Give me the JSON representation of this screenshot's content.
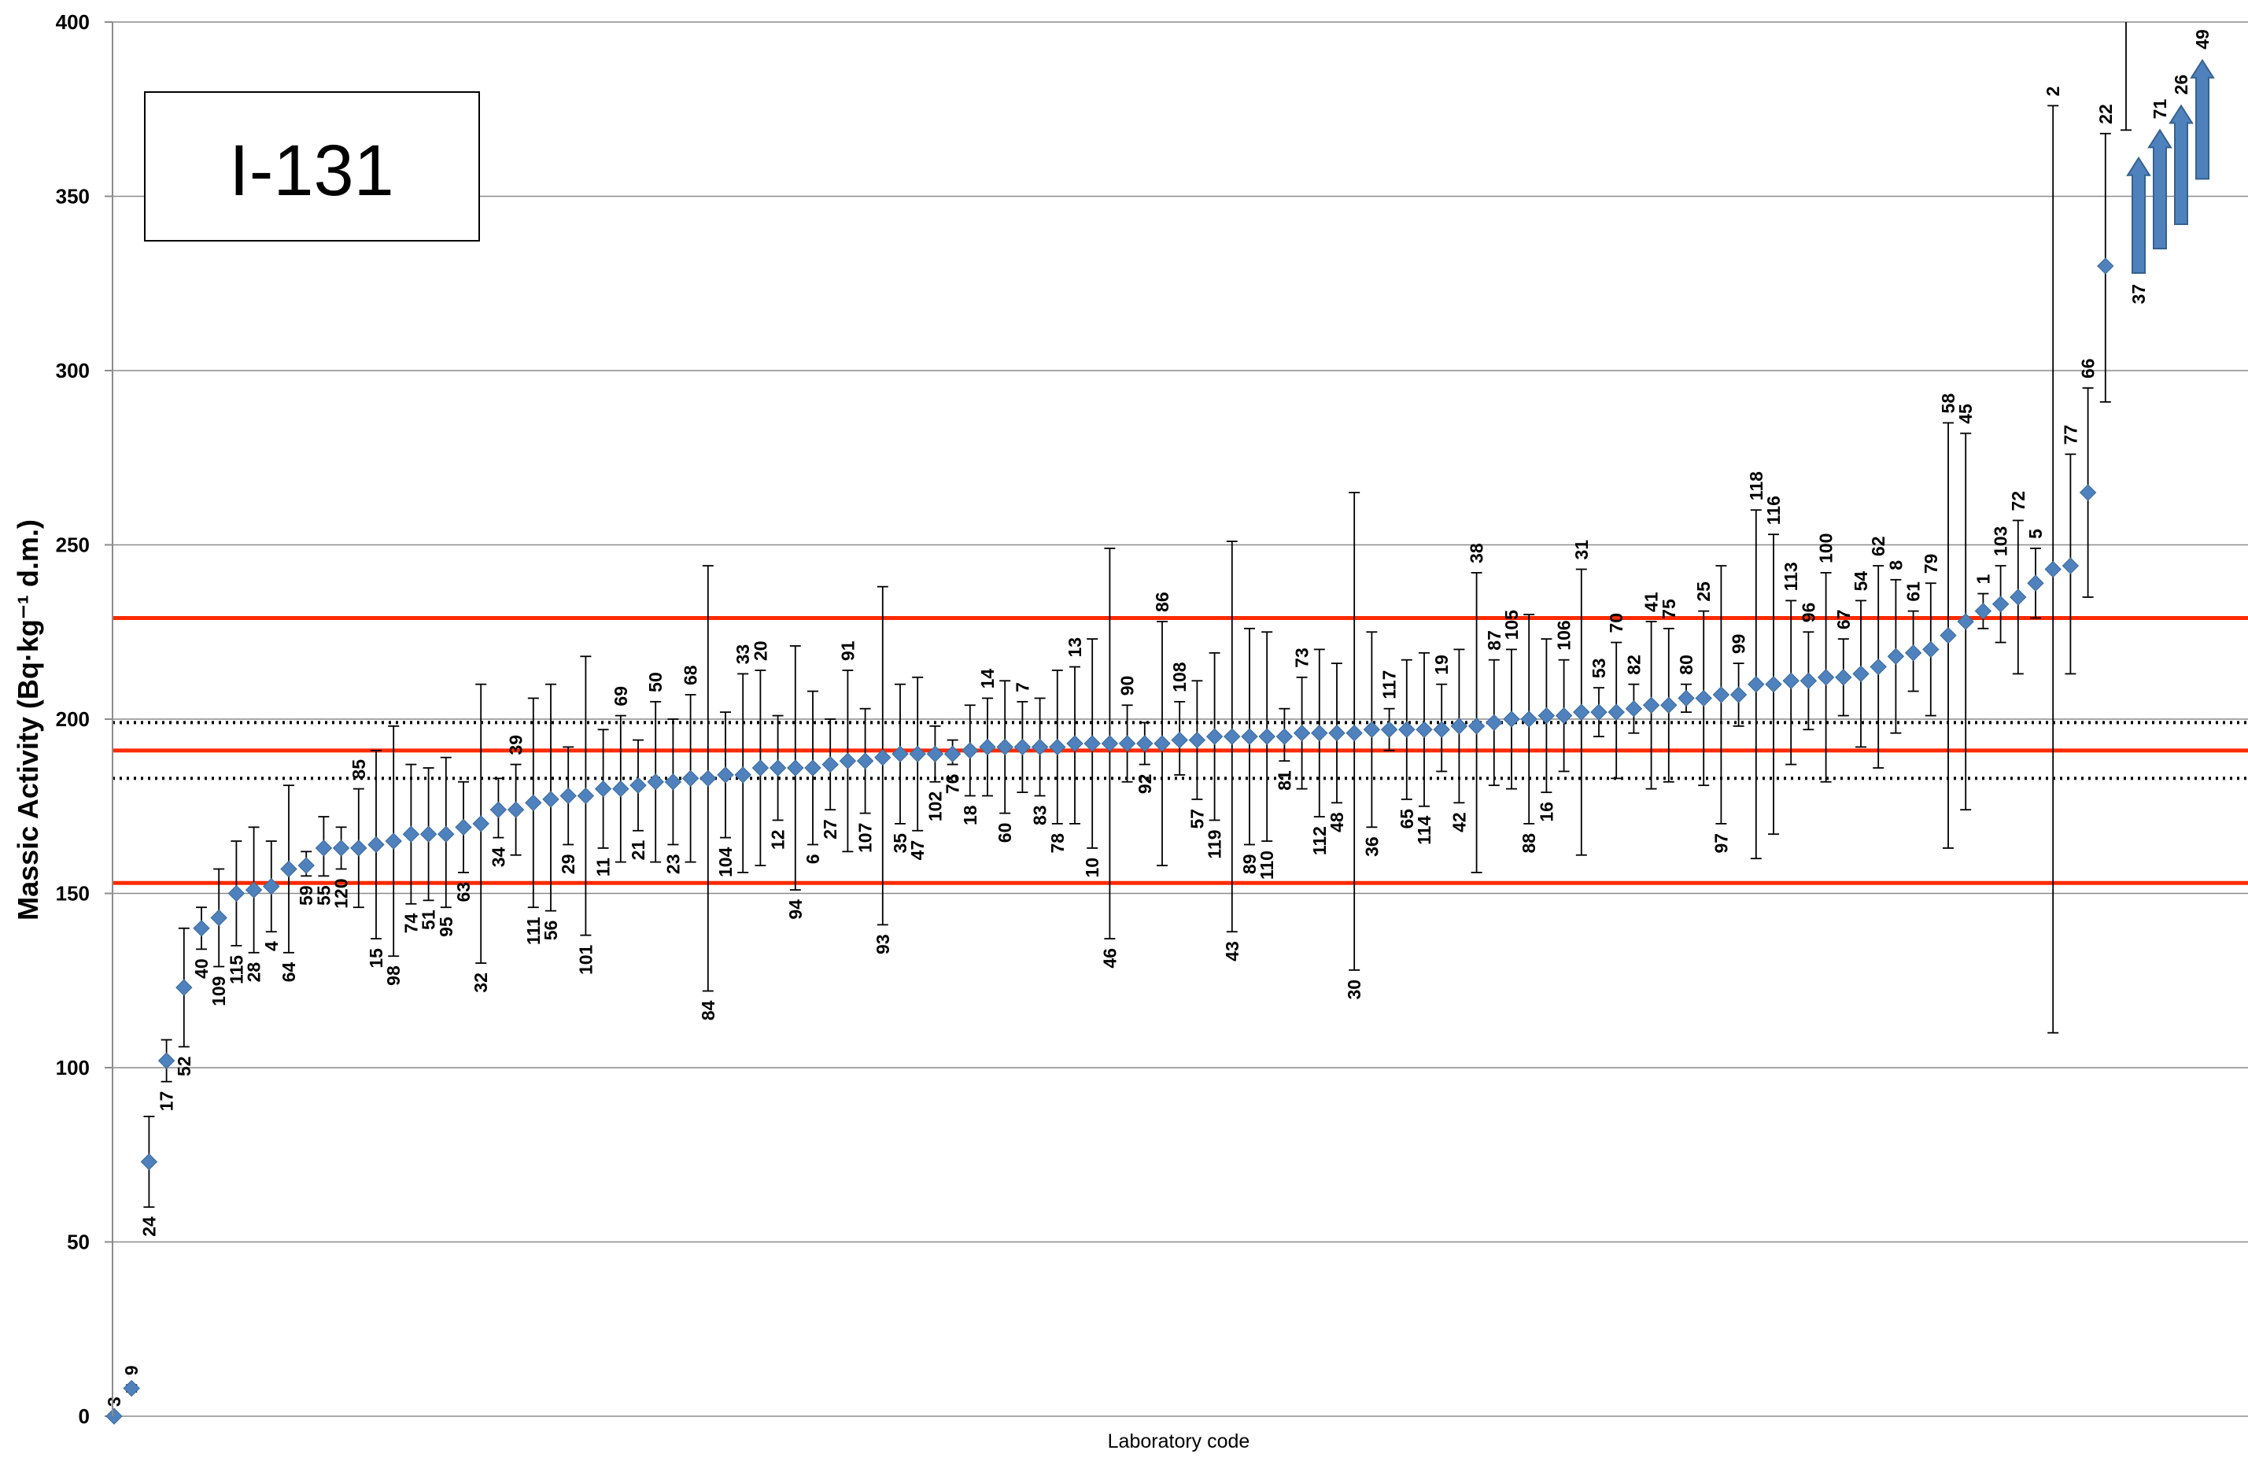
{
  "chart_data": {
    "type": "scatter",
    "title": "I-131",
    "xlabel": "Laboratory code",
    "ylabel": "Massic  Activity (Bq·kg⁻¹ d.m.)",
    "ylim": [
      0,
      400
    ],
    "yticks": [
      0,
      50,
      100,
      150,
      200,
      250,
      300,
      350,
      400
    ],
    "grid": true,
    "colors": {
      "marker": "#4f81bd",
      "marker_edge": "#3a6a9c",
      "reference": "#ff2a00",
      "uncertainty": "#000000",
      "error_bar": "#000000",
      "arrow": "#4f81bd"
    },
    "reference_lines": [
      {
        "kind": "reference value",
        "value": 191,
        "style": "solid",
        "color": "#ff2a00"
      },
      {
        "kind": "acceptance limit",
        "value": 229,
        "style": "solid",
        "color": "#ff2a00"
      },
      {
        "kind": "acceptance limit",
        "value": 153,
        "style": "solid",
        "color": "#ff2a00"
      },
      {
        "kind": "uncertainty",
        "value": 199,
        "style": "dotted",
        "color": "#000000"
      },
      {
        "kind": "uncertainty",
        "value": 183,
        "style": "dotted",
        "color": "#000000"
      }
    ],
    "points": [
      {
        "code": "3",
        "y": 0,
        "lo": 0,
        "hi": 0,
        "pos": "above"
      },
      {
        "code": "9",
        "y": 8,
        "lo": 7,
        "hi": 9,
        "pos": "above"
      },
      {
        "code": "24",
        "y": 73,
        "lo": 60,
        "hi": 86,
        "pos": "below"
      },
      {
        "code": "17",
        "y": 102,
        "lo": 96,
        "hi": 108,
        "pos": "below"
      },
      {
        "code": "52",
        "y": 123,
        "lo": 106,
        "hi": 140,
        "pos": "below"
      },
      {
        "code": "40",
        "y": 140,
        "lo": 134,
        "hi": 146,
        "pos": "below"
      },
      {
        "code": "109",
        "y": 143,
        "lo": 129,
        "hi": 157,
        "pos": "below"
      },
      {
        "code": "115",
        "y": 150,
        "lo": 135,
        "hi": 165,
        "pos": "below"
      },
      {
        "code": "28",
        "y": 151,
        "lo": 133,
        "hi": 169,
        "pos": "below"
      },
      {
        "code": "4",
        "y": 152,
        "lo": 139,
        "hi": 165,
        "pos": "below"
      },
      {
        "code": "64",
        "y": 157,
        "lo": 133,
        "hi": 181,
        "pos": "below"
      },
      {
        "code": "59",
        "y": 158,
        "lo": 155,
        "hi": 162,
        "pos": "below"
      },
      {
        "code": "55",
        "y": 163,
        "lo": 155,
        "hi": 172,
        "pos": "below"
      },
      {
        "code": "120",
        "y": 163,
        "lo": 157,
        "hi": 169,
        "pos": "below"
      },
      {
        "code": "85",
        "y": 163,
        "lo": 146,
        "hi": 180,
        "pos": "above"
      },
      {
        "code": "15",
        "y": 164,
        "lo": 137,
        "hi": 191,
        "pos": "below"
      },
      {
        "code": "98",
        "y": 165,
        "lo": 132,
        "hi": 198,
        "pos": "below"
      },
      {
        "code": "74",
        "y": 167,
        "lo": 147,
        "hi": 187,
        "pos": "below"
      },
      {
        "code": "51",
        "y": 167,
        "lo": 148,
        "hi": 186,
        "pos": "below"
      },
      {
        "code": "95",
        "y": 167,
        "lo": 146,
        "hi": 189,
        "pos": "below"
      },
      {
        "code": "63",
        "y": 169,
        "lo": 156,
        "hi": 182,
        "pos": "below"
      },
      {
        "code": "32",
        "y": 170,
        "lo": 130,
        "hi": 210,
        "pos": "below"
      },
      {
        "code": "34",
        "y": 174,
        "lo": 166,
        "hi": 183,
        "pos": "below"
      },
      {
        "code": "39",
        "y": 174,
        "lo": 161,
        "hi": 187,
        "pos": "above"
      },
      {
        "code": "111",
        "y": 176,
        "lo": 146,
        "hi": 206,
        "pos": "below"
      },
      {
        "code": "56",
        "y": 177,
        "lo": 145,
        "hi": 210,
        "pos": "below"
      },
      {
        "code": "29",
        "y": 178,
        "lo": 164,
        "hi": 192,
        "pos": "below"
      },
      {
        "code": "101",
        "y": 178,
        "lo": 138,
        "hi": 218,
        "pos": "below"
      },
      {
        "code": "11",
        "y": 180,
        "lo": 163,
        "hi": 197,
        "pos": "below"
      },
      {
        "code": "69",
        "y": 180,
        "lo": 159,
        "hi": 201,
        "pos": "above"
      },
      {
        "code": "21",
        "y": 181,
        "lo": 168,
        "hi": 194,
        "pos": "below"
      },
      {
        "code": "50",
        "y": 182,
        "lo": 159,
        "hi": 205,
        "pos": "above"
      },
      {
        "code": "23",
        "y": 182,
        "lo": 164,
        "hi": 200,
        "pos": "below"
      },
      {
        "code": "68",
        "y": 183,
        "lo": 159,
        "hi": 207,
        "pos": "above"
      },
      {
        "code": "84",
        "y": 183,
        "lo": 122,
        "hi": 244,
        "pos": "below"
      },
      {
        "code": "104",
        "y": 184,
        "lo": 166,
        "hi": 202,
        "pos": "below"
      },
      {
        "code": "33",
        "y": 184,
        "lo": 156,
        "hi": 213,
        "pos": "above"
      },
      {
        "code": "20",
        "y": 186,
        "lo": 158,
        "hi": 214,
        "pos": "above"
      },
      {
        "code": "12",
        "y": 186,
        "lo": 171,
        "hi": 201,
        "pos": "below"
      },
      {
        "code": "94",
        "y": 186,
        "lo": 151,
        "hi": 221,
        "pos": "below"
      },
      {
        "code": "6",
        "y": 186,
        "lo": 164,
        "hi": 208,
        "pos": "below"
      },
      {
        "code": "27",
        "y": 187,
        "lo": 174,
        "hi": 200,
        "pos": "below"
      },
      {
        "code": "91",
        "y": 188,
        "lo": 162,
        "hi": 214,
        "pos": "above"
      },
      {
        "code": "107",
        "y": 188,
        "lo": 173,
        "hi": 203,
        "pos": "below"
      },
      {
        "code": "93",
        "y": 189,
        "lo": 141,
        "hi": 238,
        "pos": "below"
      },
      {
        "code": "35",
        "y": 190,
        "lo": 170,
        "hi": 210,
        "pos": "below"
      },
      {
        "code": "47",
        "y": 190,
        "lo": 168,
        "hi": 212,
        "pos": "below"
      },
      {
        "code": "102",
        "y": 190,
        "lo": 182,
        "hi": 198,
        "pos": "below"
      },
      {
        "code": "76",
        "y": 190,
        "lo": 187,
        "hi": 194,
        "pos": "below"
      },
      {
        "code": "18",
        "y": 191,
        "lo": 178,
        "hi": 204,
        "pos": "below"
      },
      {
        "code": "14",
        "y": 192,
        "lo": 178,
        "hi": 206,
        "pos": "above"
      },
      {
        "code": "60",
        "y": 192,
        "lo": 173,
        "hi": 211,
        "pos": "below"
      },
      {
        "code": "7",
        "y": 192,
        "lo": 179,
        "hi": 205,
        "pos": "above"
      },
      {
        "code": "83",
        "y": 192,
        "lo": 178,
        "hi": 206,
        "pos": "below"
      },
      {
        "code": "78",
        "y": 192,
        "lo": 170,
        "hi": 214,
        "pos": "below"
      },
      {
        "code": "13",
        "y": 193,
        "lo": 170,
        "hi": 215,
        "pos": "above"
      },
      {
        "code": "10",
        "y": 193,
        "lo": 163,
        "hi": 223,
        "pos": "below"
      },
      {
        "code": "46",
        "y": 193,
        "lo": 137,
        "hi": 249,
        "pos": "below"
      },
      {
        "code": "90",
        "y": 193,
        "lo": 182,
        "hi": 204,
        "pos": "above"
      },
      {
        "code": "92",
        "y": 193,
        "lo": 187,
        "hi": 199,
        "pos": "below"
      },
      {
        "code": "86",
        "y": 193,
        "lo": 158,
        "hi": 228,
        "pos": "above"
      },
      {
        "code": "108",
        "y": 194,
        "lo": 184,
        "hi": 205,
        "pos": "above"
      },
      {
        "code": "57",
        "y": 194,
        "lo": 177,
        "hi": 211,
        "pos": "below"
      },
      {
        "code": "119",
        "y": 195,
        "lo": 171,
        "hi": 219,
        "pos": "below"
      },
      {
        "code": "43",
        "y": 195,
        "lo": 139,
        "hi": 251,
        "pos": "below"
      },
      {
        "code": "89",
        "y": 195,
        "lo": 164,
        "hi": 226,
        "pos": "below"
      },
      {
        "code": "110",
        "y": 195,
        "lo": 165,
        "hi": 225,
        "pos": "below"
      },
      {
        "code": "81",
        "y": 195,
        "lo": 188,
        "hi": 203,
        "pos": "below"
      },
      {
        "code": "73",
        "y": 196,
        "lo": 180,
        "hi": 212,
        "pos": "above"
      },
      {
        "code": "112",
        "y": 196,
        "lo": 172,
        "hi": 220,
        "pos": "below"
      },
      {
        "code": "48",
        "y": 196,
        "lo": 176,
        "hi": 216,
        "pos": "below"
      },
      {
        "code": "30",
        "y": 196,
        "lo": 128,
        "hi": 265,
        "pos": "below"
      },
      {
        "code": "36",
        "y": 197,
        "lo": 169,
        "hi": 225,
        "pos": "below"
      },
      {
        "code": "117",
        "y": 197,
        "lo": 191,
        "hi": 203,
        "pos": "above"
      },
      {
        "code": "65",
        "y": 197,
        "lo": 177,
        "hi": 217,
        "pos": "below"
      },
      {
        "code": "114",
        "y": 197,
        "lo": 175,
        "hi": 219,
        "pos": "below"
      },
      {
        "code": "19",
        "y": 197,
        "lo": 185,
        "hi": 210,
        "pos": "above"
      },
      {
        "code": "42",
        "y": 198,
        "lo": 176,
        "hi": 220,
        "pos": "below"
      },
      {
        "code": "38",
        "y": 198,
        "lo": 156,
        "hi": 242,
        "pos": "above"
      },
      {
        "code": "87",
        "y": 199,
        "lo": 181,
        "hi": 217,
        "pos": "above"
      },
      {
        "code": "105",
        "y": 200,
        "lo": 180,
        "hi": 220,
        "pos": "above"
      },
      {
        "code": "88",
        "y": 200,
        "lo": 170,
        "hi": 230,
        "pos": "below"
      },
      {
        "code": "16",
        "y": 201,
        "lo": 179,
        "hi": 223,
        "pos": "below"
      },
      {
        "code": "106",
        "y": 201,
        "lo": 185,
        "hi": 217,
        "pos": "above"
      },
      {
        "code": "31",
        "y": 202,
        "lo": 161,
        "hi": 243,
        "pos": "above"
      },
      {
        "code": "53",
        "y": 202,
        "lo": 195,
        "hi": 209,
        "pos": "above"
      },
      {
        "code": "70",
        "y": 202,
        "lo": 183,
        "hi": 222,
        "pos": "above"
      },
      {
        "code": "82",
        "y": 203,
        "lo": 196,
        "hi": 210,
        "pos": "above"
      },
      {
        "code": "41",
        "y": 204,
        "lo": 180,
        "hi": 228,
        "pos": "above"
      },
      {
        "code": "75",
        "y": 204,
        "lo": 182,
        "hi": 226,
        "pos": "above"
      },
      {
        "code": "80",
        "y": 206,
        "lo": 202,
        "hi": 210,
        "pos": "above"
      },
      {
        "code": "25",
        "y": 206,
        "lo": 181,
        "hi": 231,
        "pos": "above"
      },
      {
        "code": "97",
        "y": 207,
        "lo": 170,
        "hi": 244,
        "pos": "below"
      },
      {
        "code": "99",
        "y": 207,
        "lo": 198,
        "hi": 216,
        "pos": "above"
      },
      {
        "code": "118",
        "y": 210,
        "lo": 160,
        "hi": 260,
        "pos": "above"
      },
      {
        "code": "116",
        "y": 210,
        "lo": 167,
        "hi": 253,
        "pos": "above"
      },
      {
        "code": "113",
        "y": 211,
        "lo": 187,
        "hi": 234,
        "pos": "above"
      },
      {
        "code": "96",
        "y": 211,
        "lo": 197,
        "hi": 225,
        "pos": "above"
      },
      {
        "code": "100",
        "y": 212,
        "lo": 182,
        "hi": 242,
        "pos": "above"
      },
      {
        "code": "67",
        "y": 212,
        "lo": 201,
        "hi": 223,
        "pos": "above"
      },
      {
        "code": "54",
        "y": 213,
        "lo": 192,
        "hi": 234,
        "pos": "above"
      },
      {
        "code": "62",
        "y": 215,
        "lo": 186,
        "hi": 244,
        "pos": "above"
      },
      {
        "code": "8",
        "y": 218,
        "lo": 196,
        "hi": 240,
        "pos": "above"
      },
      {
        "code": "61",
        "y": 219,
        "lo": 208,
        "hi": 231,
        "pos": "above"
      },
      {
        "code": "79",
        "y": 220,
        "lo": 201,
        "hi": 239,
        "pos": "above"
      },
      {
        "code": "58",
        "y": 224,
        "lo": 163,
        "hi": 285,
        "pos": "above"
      },
      {
        "code": "45",
        "y": 228,
        "lo": 174,
        "hi": 282,
        "pos": "above"
      },
      {
        "code": "1",
        "y": 231,
        "lo": 226,
        "hi": 236,
        "pos": "above"
      },
      {
        "code": "103",
        "y": 233,
        "lo": 222,
        "hi": 244,
        "pos": "above"
      },
      {
        "code": "72",
        "y": 235,
        "lo": 213,
        "hi": 257,
        "pos": "above"
      },
      {
        "code": "5",
        "y": 239,
        "lo": 229,
        "hi": 249,
        "pos": "above"
      },
      {
        "code": "2",
        "y": 243,
        "lo": 110,
        "hi": 376,
        "pos": "above"
      },
      {
        "code": "77",
        "y": 244,
        "lo": 213,
        "hi": 276,
        "pos": "above"
      },
      {
        "code": "66",
        "y": 265,
        "lo": 235,
        "hi": 295,
        "pos": "above"
      },
      {
        "code": "22",
        "y": 330,
        "lo": 291,
        "hi": 368,
        "pos": "above"
      }
    ],
    "off_scale": [
      {
        "code": "37",
        "from": 328,
        "to": 361,
        "label_pos": "below"
      },
      {
        "code": "71",
        "from": 335,
        "to": 369,
        "label_pos": "above"
      },
      {
        "code": "26",
        "from": 342,
        "to": 376,
        "label_pos": "above"
      },
      {
        "code": "49",
        "from": 355,
        "to": 389,
        "label_pos": "above"
      }
    ],
    "extra_error_bars": [
      {
        "y_lo": 369,
        "y_hi": 400
      }
    ]
  }
}
